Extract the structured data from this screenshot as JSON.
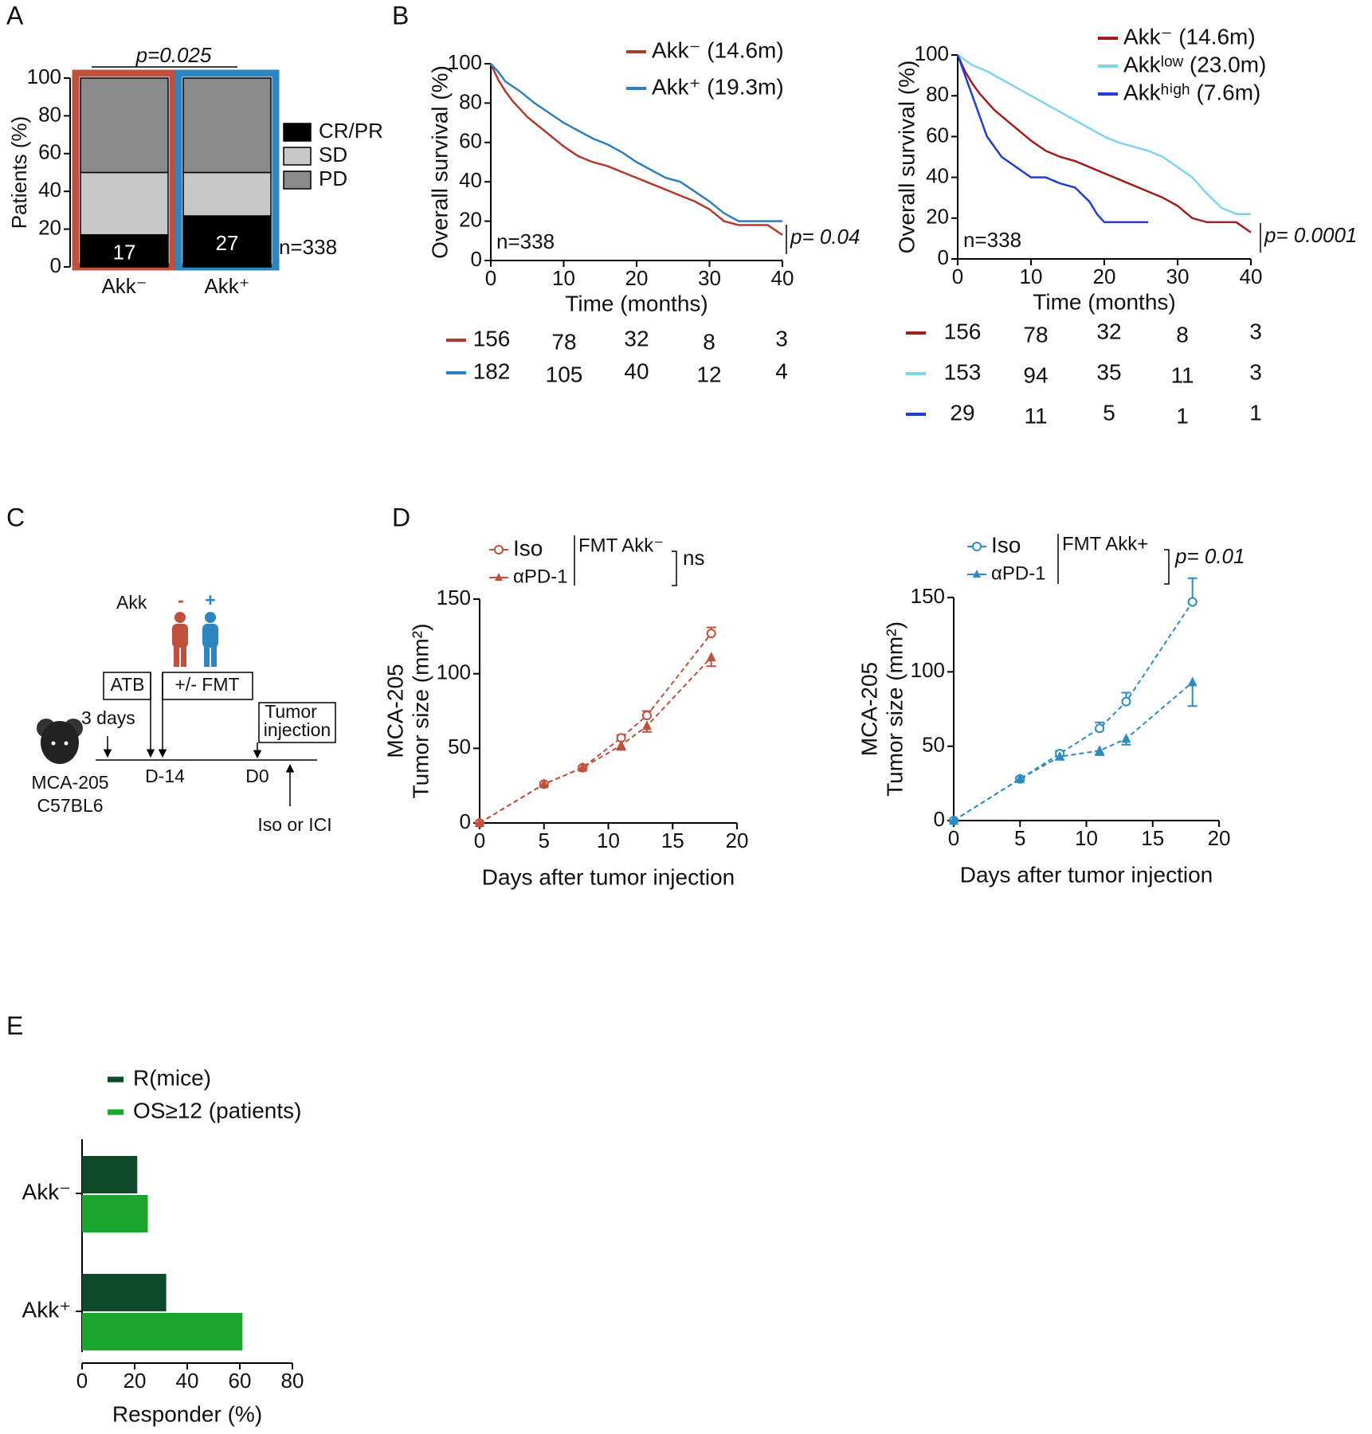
{
  "panel_labels": [
    "A",
    "B",
    "C",
    "D",
    "E"
  ],
  "diagram": {
    "akk_label": "Akk",
    "minus": "-",
    "plus": "+",
    "atb": "ATB",
    "fmt": "+/- FMT",
    "tumor_injection": [
      "Tumor",
      "injection"
    ],
    "interval": "3 days",
    "day_fmt": "D-14",
    "day_tumor": "D0",
    "model": [
      "MCA-205",
      "C57BL6"
    ],
    "treatment": "Iso or ICI"
  },
  "chart_data": [
    {
      "type": "bar",
      "stacked": true,
      "ylabel": "Patients (%)",
      "categories": [
        "Akk⁻",
        "Akk⁺"
      ],
      "series": [
        {
          "name": "CR/PR",
          "color": "#000000",
          "values": [
            17,
            27
          ],
          "show_values": true
        },
        {
          "name": "SD",
          "color": "#c8c8c8",
          "values": [
            33,
            23
          ]
        },
        {
          "name": "PD",
          "color": "#8a8a8a",
          "values": [
            50,
            50
          ]
        }
      ],
      "outline_colors": [
        "#c0503e",
        "#2e86c1"
      ],
      "ylim": [
        0,
        100
      ],
      "yticks": [
        0,
        20,
        40,
        60,
        80,
        100
      ],
      "annotations": {
        "p": "p=0.025",
        "n": "n=338"
      }
    },
    {
      "type": "km",
      "xlabel": "Time (months)",
      "ylabel": "Overall survival (%)",
      "series": [
        {
          "name": "Akk⁻ (14.6m)",
          "color": "#b03a2e",
          "x": [
            0,
            1,
            2,
            3,
            4,
            5,
            6,
            8,
            10,
            12,
            14,
            16,
            18,
            20,
            22,
            24,
            26,
            28,
            30,
            32,
            34,
            36,
            38,
            40
          ],
          "values": [
            100,
            92,
            86,
            81,
            77,
            73,
            70,
            64,
            58,
            53,
            50,
            48,
            45,
            42,
            39,
            36,
            33,
            30,
            26,
            20,
            18,
            18,
            18,
            13
          ],
          "at_risk": [
            156,
            78,
            32,
            8,
            3
          ]
        },
        {
          "name": "Akk⁺ (19.3m)",
          "color": "#2f7fbf",
          "x": [
            0,
            1,
            2,
            4,
            6,
            8,
            10,
            12,
            14,
            16,
            18,
            20,
            22,
            24,
            26,
            28,
            30,
            32,
            34,
            36,
            38,
            40
          ],
          "values": [
            100,
            96,
            91,
            86,
            80,
            75,
            70,
            66,
            62,
            59,
            55,
            50,
            46,
            42,
            40,
            35,
            30,
            24,
            20,
            20,
            20,
            20
          ],
          "at_risk": [
            182,
            105,
            40,
            12,
            4
          ]
        }
      ],
      "xlim": [
        0,
        40
      ],
      "xticks": [
        0,
        10,
        20,
        30,
        40
      ],
      "ylim": [
        0,
        100
      ],
      "yticks": [
        0,
        20,
        40,
        60,
        80,
        100
      ],
      "annotations": {
        "n": "n=338",
        "p": "p= 0.04"
      }
    },
    {
      "type": "km",
      "xlabel": "Time (months)",
      "ylabel": "Overall survival (%)",
      "series": [
        {
          "name": "Akk⁻ (14.6m)",
          "color": "#a31d1d",
          "x": [
            0,
            1,
            2,
            3,
            4,
            5,
            6,
            8,
            10,
            12,
            14,
            16,
            18,
            20,
            22,
            24,
            26,
            28,
            30,
            32,
            34,
            36,
            38,
            40
          ],
          "values": [
            100,
            92,
            86,
            81,
            77,
            73,
            70,
            64,
            58,
            53,
            50,
            48,
            45,
            42,
            39,
            36,
            33,
            30,
            26,
            20,
            18,
            18,
            18,
            13
          ],
          "at_risk": [
            156,
            78,
            32,
            8,
            3
          ]
        },
        {
          "name": "Akkˡᵒʷ (23.0m)",
          "color": "#7fd3ea",
          "x": [
            0,
            2,
            4,
            6,
            8,
            10,
            12,
            14,
            16,
            18,
            20,
            22,
            24,
            26,
            28,
            30,
            32,
            34,
            36,
            38,
            40
          ],
          "values": [
            100,
            95,
            92,
            88,
            84,
            80,
            76,
            72,
            68,
            64,
            60,
            57,
            55,
            53,
            50,
            45,
            40,
            32,
            25,
            22,
            22
          ],
          "at_risk": [
            153,
            94,
            35,
            11,
            3
          ]
        },
        {
          "name": "Akkʰⁱᵍʰ (7.6m)",
          "color": "#1f3fd1",
          "x": [
            0,
            1,
            2,
            3,
            4,
            6,
            8,
            10,
            12,
            14,
            16,
            18,
            19,
            20,
            22,
            24,
            26
          ],
          "values": [
            100,
            90,
            80,
            70,
            60,
            50,
            45,
            40,
            40,
            37,
            35,
            28,
            22,
            18,
            18,
            18,
            18
          ],
          "at_risk": [
            29,
            11,
            5,
            1,
            1
          ]
        }
      ],
      "xlim": [
        0,
        40
      ],
      "xticks": [
        0,
        10,
        20,
        30,
        40
      ],
      "ylim": [
        0,
        100
      ],
      "yticks": [
        0,
        20,
        40,
        60,
        80,
        100
      ],
      "annotations": {
        "n": "n=338",
        "p": "p= 0.0001"
      }
    },
    {
      "type": "line",
      "xlabel": "Days after tumor injection",
      "ylabel": [
        "MCA-205",
        "Tumor size (mm²)"
      ],
      "dashed": true,
      "x": [
        0,
        5,
        8,
        11,
        13,
        18
      ],
      "series": [
        {
          "name": "Iso",
          "color": "#c0503e",
          "marker": "circle",
          "values": [
            0,
            26,
            37,
            57,
            72,
            127
          ],
          "errors": [
            0,
            1,
            1,
            2,
            3,
            4
          ]
        },
        {
          "name": "αPD-1",
          "color": "#c0503e",
          "marker": "triangle",
          "values": [
            0,
            26,
            37,
            52,
            65,
            111
          ],
          "errors": [
            0,
            1,
            1,
            3,
            4,
            6
          ]
        }
      ],
      "xlim": [
        0,
        20
      ],
      "xticks": [
        0,
        5,
        10,
        15,
        20
      ],
      "ylim": [
        0,
        150
      ],
      "yticks": [
        0,
        50,
        100,
        150
      ],
      "annotations": {
        "group": "FMT Akk⁻",
        "p": "ns"
      }
    },
    {
      "type": "line",
      "xlabel": "Days after tumor injection",
      "ylabel": [
        "MCA-205",
        "Tumor size (mm²)"
      ],
      "dashed": true,
      "x": [
        0,
        5,
        8,
        11,
        13,
        18
      ],
      "series": [
        {
          "name": "Iso",
          "color": "#2e8bc0",
          "marker": "circle",
          "values": [
            0,
            28,
            45,
            62,
            80,
            147
          ],
          "errors": [
            0,
            1,
            2,
            4,
            6,
            16
          ]
        },
        {
          "name": "αPD-1",
          "color": "#2e8bc0",
          "marker": "triangle",
          "values": [
            0,
            28,
            43,
            47,
            55,
            93
          ],
          "errors": [
            0,
            1,
            2,
            3,
            4,
            16
          ]
        }
      ],
      "xlim": [
        0,
        20
      ],
      "xticks": [
        0,
        5,
        10,
        15,
        20
      ],
      "ylim": [
        0,
        150
      ],
      "yticks": [
        0,
        50,
        100,
        150
      ],
      "annotations": {
        "group": "FMT Akk+",
        "p": "p= 0.01"
      }
    },
    {
      "type": "barh",
      "xlabel": "Responder (%)",
      "categories": [
        "Akk⁻",
        "Akk⁺"
      ],
      "series": [
        {
          "name": "R(mice)",
          "color": "#0e4a27",
          "values": [
            21,
            32
          ]
        },
        {
          "name": "OS≥12 (patients)",
          "color": "#1aa52c",
          "values": [
            25,
            61
          ]
        }
      ],
      "xlim": [
        0,
        80
      ],
      "xticks": [
        0,
        20,
        40,
        60,
        80
      ]
    }
  ]
}
